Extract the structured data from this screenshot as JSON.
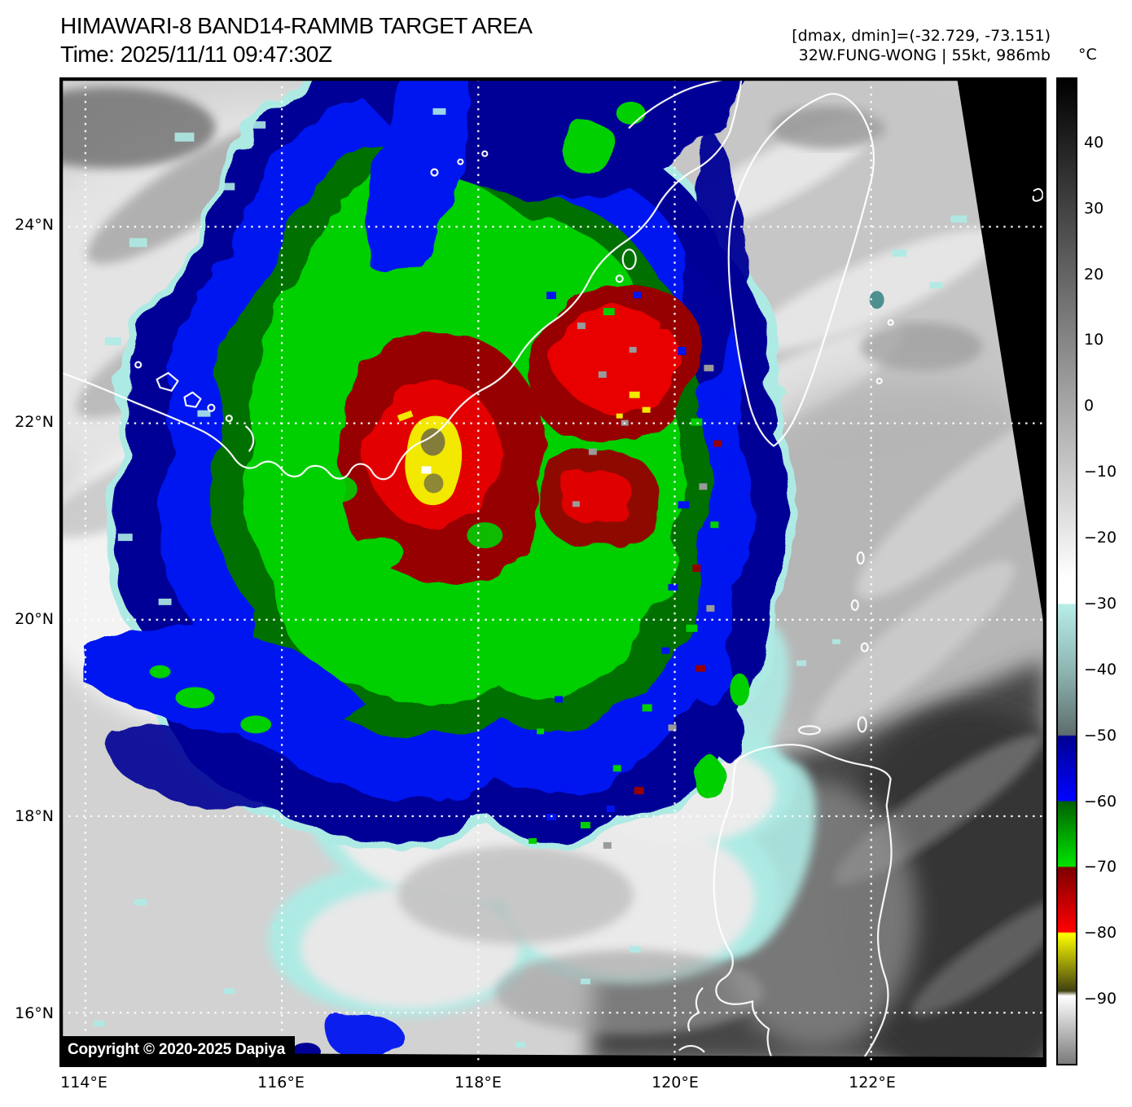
{
  "header": {
    "title": "HIMAWARI-8 BAND14-RAMMB TARGET AREA",
    "time": "Time: 2025/11/11 09:47:30Z",
    "dmax_dmin": "[dmax, dmin]=(-32.729, -73.151)",
    "storm_status": "32W.FUNG-WONG | 55kt, 986mb"
  },
  "colorbar": {
    "unit": "°C",
    "ticks": [
      {
        "label": "40",
        "value": 40
      },
      {
        "label": "30",
        "value": 30
      },
      {
        "label": "20",
        "value": 20
      },
      {
        "label": "10",
        "value": 10
      },
      {
        "label": "0",
        "value": 0
      },
      {
        "label": "−10",
        "value": -10
      },
      {
        "label": "−20",
        "value": -20
      },
      {
        "label": "−30",
        "value": -30
      },
      {
        "label": "−40",
        "value": -40
      },
      {
        "label": "−50",
        "value": -50
      },
      {
        "label": "−60",
        "value": -60
      },
      {
        "label": "−70",
        "value": -70
      },
      {
        "label": "−80",
        "value": -80
      },
      {
        "label": "−90",
        "value": -90
      }
    ]
  },
  "map": {
    "copyright": "Copyright © 2020-2025 Dapiya",
    "lat_labels": [
      {
        "label": "24°N",
        "value": 24
      },
      {
        "label": "22°N",
        "value": 22
      },
      {
        "label": "20°N",
        "value": 20
      },
      {
        "label": "18°N",
        "value": 18
      },
      {
        "label": "16°N",
        "value": 16
      }
    ],
    "lon_labels": [
      {
        "label": "114°E",
        "value": 114
      },
      {
        "label": "116°E",
        "value": 116
      },
      {
        "label": "118°E",
        "value": 118
      },
      {
        "label": "120°E",
        "value": 120
      },
      {
        "label": "122°E",
        "value": 122
      }
    ]
  },
  "colors": {
    "cyan": "#aeeae4",
    "teal": "#7fb2ae",
    "blue": "#0013f0",
    "blueDark": "#000096",
    "green": "#00cf00",
    "greenDark": "#007000",
    "red": "#e80000",
    "redDark": "#960000",
    "yellow": "#f2e800",
    "olive": "#837c3a",
    "grayLight": "#e9e9e9",
    "gray": "#9a9a9a",
    "grayDark": "#454545",
    "white": "#ffffff",
    "black": "#000000"
  }
}
